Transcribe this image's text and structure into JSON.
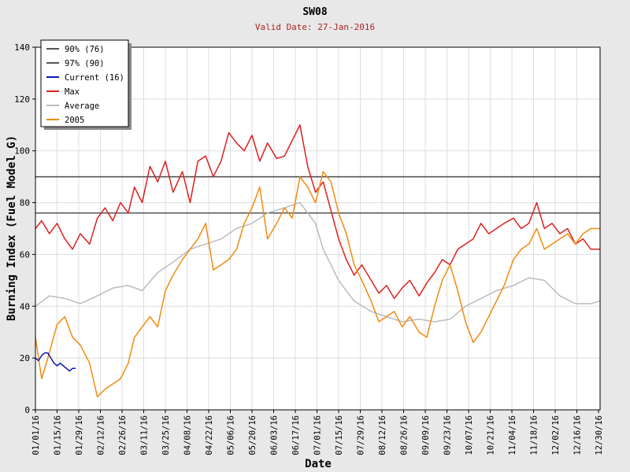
{
  "chart_data": {
    "type": "line",
    "title": "SW08",
    "subtitle": "Valid Date: 27-Jan-2016",
    "xlabel": "Date",
    "ylabel": "Burning Index (Fuel Model G)",
    "ylim": [
      0,
      140
    ],
    "yticks": [
      0,
      20,
      40,
      60,
      80,
      100,
      120,
      140
    ],
    "xlim": [
      "2016-01-01",
      "2016-12-31"
    ],
    "xticks": [
      "01/01/16",
      "01/15/16",
      "01/29/16",
      "02/12/16",
      "02/26/16",
      "03/11/16",
      "03/25/16",
      "04/08/16",
      "04/22/16",
      "05/06/16",
      "05/20/16",
      "06/03/16",
      "06/17/16",
      "07/01/16",
      "07/15/16",
      "07/29/16",
      "08/12/16",
      "08/26/16",
      "09/09/16",
      "09/23/16",
      "10/07/16",
      "10/21/16",
      "11/04/16",
      "11/18/16",
      "12/02/16",
      "12/16/16",
      "12/30/16"
    ],
    "grid": true,
    "legend_position": "top-left",
    "reference_lines": [
      {
        "name": "90% (76)",
        "value": 76,
        "color": "#555555"
      },
      {
        "name": "97% (90)",
        "value": 90,
        "color": "#555555"
      }
    ],
    "series": [
      {
        "name": "Max",
        "color": "#dd1f1f",
        "x": [
          "2016-01-01",
          "2016-01-05",
          "2016-01-10",
          "2016-01-15",
          "2016-01-20",
          "2016-01-25",
          "2016-01-30",
          "2016-02-05",
          "2016-02-10",
          "2016-02-15",
          "2016-02-20",
          "2016-02-25",
          "2016-03-01",
          "2016-03-05",
          "2016-03-10",
          "2016-03-15",
          "2016-03-20",
          "2016-03-25",
          "2016-03-30",
          "2016-04-05",
          "2016-04-10",
          "2016-04-15",
          "2016-04-20",
          "2016-04-25",
          "2016-04-30",
          "2016-05-05",
          "2016-05-10",
          "2016-05-15",
          "2016-05-20",
          "2016-05-25",
          "2016-05-30",
          "2016-06-05",
          "2016-06-10",
          "2016-06-15",
          "2016-06-20",
          "2016-06-25",
          "2016-06-30",
          "2016-07-05",
          "2016-07-10",
          "2016-07-15",
          "2016-07-20",
          "2016-07-25",
          "2016-07-30",
          "2016-08-05",
          "2016-08-10",
          "2016-08-15",
          "2016-08-20",
          "2016-08-25",
          "2016-08-30",
          "2016-09-05",
          "2016-09-10",
          "2016-09-15",
          "2016-09-20",
          "2016-09-25",
          "2016-09-30",
          "2016-10-05",
          "2016-10-10",
          "2016-10-15",
          "2016-10-20",
          "2016-10-25",
          "2016-10-30",
          "2016-11-05",
          "2016-11-10",
          "2016-11-15",
          "2016-11-20",
          "2016-11-25",
          "2016-11-30",
          "2016-12-05",
          "2016-12-10",
          "2016-12-15",
          "2016-12-20",
          "2016-12-25",
          "2016-12-31"
        ],
        "values": [
          70,
          73,
          68,
          72,
          66,
          62,
          68,
          64,
          74,
          78,
          73,
          80,
          76,
          86,
          80,
          94,
          88,
          96,
          84,
          92,
          80,
          96,
          98,
          90,
          96,
          107,
          103,
          100,
          106,
          96,
          103,
          97,
          98,
          104,
          110,
          94,
          84,
          88,
          77,
          66,
          58,
          52,
          56,
          50,
          45,
          48,
          43,
          47,
          50,
          44,
          49,
          53,
          58,
          56,
          62,
          64,
          66,
          72,
          68,
          70,
          72,
          74,
          70,
          72,
          80,
          70,
          72,
          68,
          70,
          64,
          66,
          62,
          62
        ]
      },
      {
        "name": "Average",
        "color": "#bbbbbb",
        "x": [
          "2016-01-01",
          "2016-01-10",
          "2016-01-20",
          "2016-01-30",
          "2016-02-10",
          "2016-02-20",
          "2016-03-01",
          "2016-03-10",
          "2016-03-20",
          "2016-03-30",
          "2016-04-10",
          "2016-04-20",
          "2016-04-30",
          "2016-05-10",
          "2016-05-20",
          "2016-05-30",
          "2016-06-10",
          "2016-06-20",
          "2016-06-30",
          "2016-07-05",
          "2016-07-15",
          "2016-07-25",
          "2016-08-05",
          "2016-08-15",
          "2016-08-25",
          "2016-09-05",
          "2016-09-15",
          "2016-09-25",
          "2016-10-05",
          "2016-10-15",
          "2016-10-25",
          "2016-11-05",
          "2016-11-15",
          "2016-11-25",
          "2016-12-05",
          "2016-12-15",
          "2016-12-25",
          "2016-12-31"
        ],
        "values": [
          40,
          44,
          43,
          41,
          44,
          47,
          48,
          46,
          53,
          57,
          62,
          64,
          66,
          70,
          72,
          76,
          78,
          80,
          72,
          62,
          50,
          42,
          38,
          36,
          34,
          35,
          34,
          35,
          40,
          43,
          46,
          48,
          51,
          50,
          44,
          41,
          41,
          42
        ]
      },
      {
        "name": "2005",
        "color": "#f28a10",
        "x": [
          "2016-01-01",
          "2016-01-05",
          "2016-01-10",
          "2016-01-15",
          "2016-01-20",
          "2016-01-25",
          "2016-01-30",
          "2016-02-05",
          "2016-02-10",
          "2016-02-15",
          "2016-02-20",
          "2016-02-25",
          "2016-03-01",
          "2016-03-05",
          "2016-03-10",
          "2016-03-15",
          "2016-03-20",
          "2016-03-25",
          "2016-03-30",
          "2016-04-05",
          "2016-04-10",
          "2016-04-15",
          "2016-04-20",
          "2016-04-25",
          "2016-04-30",
          "2016-05-05",
          "2016-05-10",
          "2016-05-15",
          "2016-05-20",
          "2016-05-25",
          "2016-05-30",
          "2016-06-05",
          "2016-06-10",
          "2016-06-15",
          "2016-06-20",
          "2016-06-25",
          "2016-06-30",
          "2016-07-05",
          "2016-07-10",
          "2016-07-15",
          "2016-07-20",
          "2016-07-25",
          "2016-07-30",
          "2016-08-05",
          "2016-08-10",
          "2016-08-15",
          "2016-08-20",
          "2016-08-25",
          "2016-08-30",
          "2016-09-05",
          "2016-09-10",
          "2016-09-15",
          "2016-09-20",
          "2016-09-25",
          "2016-09-30",
          "2016-10-05",
          "2016-10-10",
          "2016-10-15",
          "2016-10-20",
          "2016-10-25",
          "2016-10-30",
          "2016-11-05",
          "2016-11-10",
          "2016-11-15",
          "2016-11-20",
          "2016-11-25",
          "2016-11-30",
          "2016-12-05",
          "2016-12-10",
          "2016-12-15",
          "2016-12-20",
          "2016-12-25",
          "2016-12-31"
        ],
        "values": [
          28,
          12,
          22,
          33,
          36,
          28,
          25,
          18,
          5,
          8,
          10,
          12,
          18,
          28,
          32,
          36,
          32,
          46,
          52,
          58,
          62,
          66,
          72,
          54,
          56,
          58,
          62,
          72,
          78,
          86,
          66,
          72,
          78,
          74,
          90,
          86,
          80,
          92,
          88,
          76,
          68,
          56,
          50,
          42,
          34,
          36,
          38,
          32,
          36,
          30,
          28,
          40,
          50,
          56,
          46,
          34,
          26,
          30,
          36,
          42,
          48,
          58,
          62,
          64,
          70,
          62,
          64,
          66,
          68,
          64,
          68,
          70,
          70
        ]
      },
      {
        "name": "Current (16)",
        "color": "#0a1aa8",
        "x": [
          "2016-01-01",
          "2016-01-03",
          "2016-01-05",
          "2016-01-07",
          "2016-01-09",
          "2016-01-11",
          "2016-01-13",
          "2016-01-15",
          "2016-01-17",
          "2016-01-19",
          "2016-01-21",
          "2016-01-23",
          "2016-01-25",
          "2016-01-27"
        ],
        "values": [
          20,
          19,
          21,
          22,
          22,
          20,
          18,
          17,
          18,
          17,
          16,
          15,
          16,
          16
        ]
      }
    ],
    "legend": [
      {
        "name": "90% (76)",
        "color": "#555555"
      },
      {
        "name": "97% (90)",
        "color": "#555555"
      },
      {
        "name": "Current (16)",
        "color": "#0a1aa8"
      },
      {
        "name": "Max",
        "color": "#dd1f1f"
      },
      {
        "name": "Average",
        "color": "#bbbbbb"
      },
      {
        "name": "2005",
        "color": "#f28a10"
      }
    ]
  }
}
